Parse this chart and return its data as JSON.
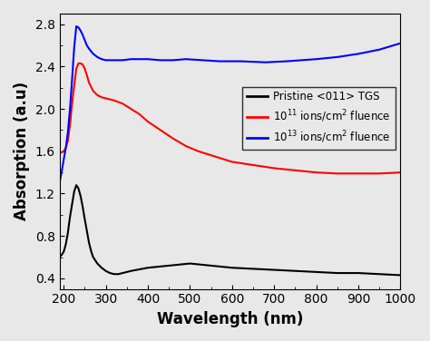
{
  "title": "",
  "xlabel": "Wavelength (nm)",
  "ylabel": "Absorption (a.u)",
  "xlim": [
    190,
    1000
  ],
  "ylim": [
    0.3,
    2.9
  ],
  "yticks": [
    0.4,
    0.8,
    1.2,
    1.6,
    2.0,
    2.4,
    2.8
  ],
  "xticks": [
    200,
    300,
    400,
    500,
    600,
    700,
    800,
    900,
    1000
  ],
  "legend": [
    "Pristine <011> TGS",
    "$10^{11}$ ions/cm$^2$ fluence",
    "$10^{13}$ ions/cm$^2$ fluence"
  ],
  "colors": [
    "black",
    "red",
    "blue"
  ],
  "bg_color": "#e8e8e8",
  "black_x": [
    190,
    195,
    200,
    205,
    210,
    215,
    220,
    225,
    230,
    235,
    240,
    245,
    250,
    255,
    260,
    265,
    270,
    280,
    290,
    300,
    310,
    320,
    330,
    340,
    360,
    400,
    450,
    500,
    550,
    600,
    650,
    700,
    750,
    800,
    850,
    900,
    950,
    1000
  ],
  "black_y": [
    0.6,
    0.62,
    0.65,
    0.72,
    0.83,
    0.98,
    1.1,
    1.22,
    1.28,
    1.25,
    1.18,
    1.08,
    0.96,
    0.85,
    0.74,
    0.66,
    0.6,
    0.54,
    0.5,
    0.47,
    0.45,
    0.44,
    0.44,
    0.45,
    0.47,
    0.5,
    0.52,
    0.54,
    0.52,
    0.5,
    0.49,
    0.48,
    0.47,
    0.46,
    0.45,
    0.45,
    0.44,
    0.43
  ],
  "red_x": [
    190,
    195,
    200,
    205,
    210,
    215,
    220,
    225,
    230,
    235,
    240,
    245,
    250,
    255,
    260,
    270,
    280,
    290,
    300,
    320,
    340,
    360,
    380,
    400,
    430,
    460,
    490,
    520,
    560,
    600,
    650,
    700,
    750,
    800,
    850,
    900,
    950,
    1000
  ],
  "red_y": [
    1.58,
    1.59,
    1.6,
    1.63,
    1.7,
    1.85,
    2.05,
    2.22,
    2.38,
    2.43,
    2.43,
    2.42,
    2.38,
    2.32,
    2.25,
    2.17,
    2.13,
    2.11,
    2.1,
    2.08,
    2.05,
    2.0,
    1.95,
    1.88,
    1.8,
    1.72,
    1.65,
    1.6,
    1.55,
    1.5,
    1.47,
    1.44,
    1.42,
    1.4,
    1.39,
    1.39,
    1.39,
    1.4
  ],
  "blue_x": [
    190,
    195,
    200,
    205,
    210,
    215,
    220,
    225,
    230,
    235,
    240,
    245,
    250,
    255,
    260,
    270,
    280,
    290,
    300,
    310,
    320,
    340,
    360,
    380,
    400,
    430,
    460,
    490,
    530,
    570,
    620,
    680,
    730,
    800,
    850,
    900,
    950,
    1000
  ],
  "blue_y": [
    1.3,
    1.4,
    1.52,
    1.63,
    1.78,
    2.0,
    2.28,
    2.58,
    2.78,
    2.77,
    2.74,
    2.7,
    2.65,
    2.6,
    2.57,
    2.52,
    2.49,
    2.47,
    2.46,
    2.46,
    2.46,
    2.46,
    2.47,
    2.47,
    2.47,
    2.46,
    2.46,
    2.47,
    2.46,
    2.45,
    2.45,
    2.44,
    2.45,
    2.47,
    2.49,
    2.52,
    2.56,
    2.62
  ]
}
